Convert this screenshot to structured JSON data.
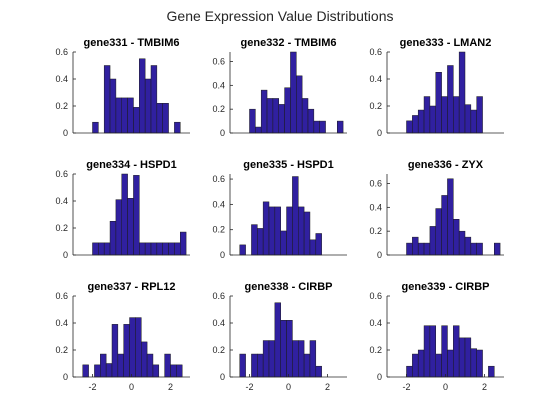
{
  "colors": {
    "bar_fill": "#3020a0",
    "bar_edge": "#1a1a1a",
    "axis": "#262626"
  },
  "chart_data": {
    "type": "bar",
    "title": "Gene Expression Value Distributions",
    "panels": [
      {
        "title": "gene331 - TMBIM6",
        "ylim": [
          0,
          0.6
        ],
        "yticks": [
          0,
          0.2,
          0.4,
          0.6
        ],
        "yticklabels": [
          "0",
          "0.2",
          "0.4",
          "0.6"
        ],
        "xlim": [
          -3,
          3
        ],
        "bin_edges": [
          -2.0,
          -1.7,
          -1.4,
          -1.1,
          -0.8,
          -0.5,
          -0.2,
          0.1,
          0.4,
          0.7,
          1.0,
          1.3,
          1.6,
          1.9,
          2.2,
          2.5
        ],
        "values": [
          0.08,
          0,
          0.5,
          0.4,
          0.26,
          0.26,
          0.26,
          0.19,
          0.55,
          0.4,
          0.5,
          0.22,
          0.22,
          0,
          0.08
        ]
      },
      {
        "title": "gene332 - TMBIM6",
        "ylim": [
          0,
          0.68
        ],
        "yticks": [
          0,
          0.2,
          0.4,
          0.6
        ],
        "yticklabels": [
          "0",
          "0.2",
          "0.4",
          "0.6"
        ],
        "xlim": [
          -3,
          3
        ],
        "bin_edges": [
          -2.0,
          -1.7,
          -1.4,
          -1.1,
          -0.8,
          -0.5,
          -0.2,
          0.1,
          0.4,
          0.7,
          1.0,
          1.3,
          1.6,
          1.9,
          2.2,
          2.5,
          2.8
        ],
        "values": [
          0.2,
          0.05,
          0.36,
          0.29,
          0.29,
          0.24,
          0.38,
          0.68,
          0.48,
          0.29,
          0.2,
          0.1,
          0.1,
          0,
          0,
          0.1
        ]
      },
      {
        "title": "gene333 - LMAN2",
        "ylim": [
          0,
          0.6
        ],
        "yticks": [
          0,
          0.2,
          0.4,
          0.6
        ],
        "yticklabels": [
          "0",
          "0.2",
          "0.4",
          "0.6"
        ],
        "xlim": [
          -3,
          3
        ],
        "bin_edges": [
          -2.0,
          -1.7,
          -1.4,
          -1.1,
          -0.8,
          -0.5,
          -0.2,
          0.1,
          0.4,
          0.7,
          1.0,
          1.3,
          1.6,
          1.9
        ],
        "values": [
          0.09,
          0.13,
          0.17,
          0.27,
          0.2,
          0.45,
          0.27,
          0.5,
          0.27,
          0.6,
          0.21,
          0.17,
          0.27
        ]
      },
      {
        "title": "gene334 - HSPD1",
        "ylim": [
          0,
          0.6
        ],
        "yticks": [
          0,
          0.2,
          0.4,
          0.6
        ],
        "yticklabels": [
          "0",
          "0.2",
          "0.4",
          "0.6"
        ],
        "xlim": [
          -3,
          3
        ],
        "bin_edges": [
          -2.0,
          -1.7,
          -1.4,
          -1.1,
          -0.8,
          -0.5,
          -0.2,
          0.1,
          0.4,
          0.7,
          1.0,
          1.3,
          1.6,
          1.9,
          2.2,
          2.5,
          2.8
        ],
        "values": [
          0.09,
          0.09,
          0.09,
          0.25,
          0.41,
          0.6,
          0.42,
          0.59,
          0.09,
          0.09,
          0.09,
          0.09,
          0.09,
          0.09,
          0.09,
          0.17
        ]
      },
      {
        "title": "gene335 - HSPD1",
        "ylim": [
          0,
          0.64
        ],
        "yticks": [
          0,
          0.2,
          0.4,
          0.6
        ],
        "yticklabels": [
          "0",
          "0.2",
          "0.4",
          "0.6"
        ],
        "xlim": [
          -3,
          3
        ],
        "bin_edges": [
          -2.5,
          -2.2,
          -1.9,
          -1.6,
          -1.3,
          -1.0,
          -0.7,
          -0.4,
          -0.1,
          0.2,
          0.5,
          0.8,
          1.1,
          1.4,
          1.7
        ],
        "values": [
          0.08,
          0,
          0.24,
          0.21,
          0.42,
          0.38,
          0.38,
          0.19,
          0.38,
          0.62,
          0.38,
          0.34,
          0.12,
          0.17
        ]
      },
      {
        "title": "gene336 - ZYX",
        "ylim": [
          0,
          0.68
        ],
        "yticks": [
          0,
          0.2,
          0.4,
          0.6
        ],
        "yticklabels": [
          "0",
          "0.2",
          "0.4",
          "0.6"
        ],
        "xlim": [
          -3,
          3
        ],
        "bin_edges": [
          -2.0,
          -1.7,
          -1.4,
          -1.1,
          -0.8,
          -0.5,
          -0.2,
          0.1,
          0.4,
          0.7,
          1.0,
          1.3,
          1.6,
          1.9,
          2.2,
          2.5,
          2.8
        ],
        "values": [
          0.1,
          0.15,
          0.1,
          0.1,
          0.24,
          0.39,
          0.5,
          0.64,
          0.3,
          0.2,
          0.15,
          0.1,
          0.1,
          0,
          0,
          0.1
        ]
      },
      {
        "title": "gene337 - RPL12",
        "ylim": [
          0,
          0.6
        ],
        "yticks": [
          0,
          0.2,
          0.4,
          0.6
        ],
        "yticklabels": [
          "0",
          "0.2",
          "0.4",
          "0.6"
        ],
        "xticks": [
          -2,
          0,
          2
        ],
        "xticklabels": [
          "-2",
          "0",
          "2"
        ],
        "xlim": [
          -3,
          3
        ],
        "bin_edges": [
          -2.5,
          -2.2,
          -1.9,
          -1.6,
          -1.3,
          -1.0,
          -0.7,
          -0.4,
          -0.1,
          0.2,
          0.5,
          0.8,
          1.1,
          1.4,
          1.7,
          2.0,
          2.3,
          2.6
        ],
        "values": [
          0.09,
          0,
          0.09,
          0.17,
          0.1,
          0.39,
          0.17,
          0.39,
          0.44,
          0.44,
          0.26,
          0.17,
          0.09,
          0,
          0.17,
          0.09,
          0.09
        ]
      },
      {
        "title": "gene338 - CIRBP",
        "ylim": [
          0,
          0.6
        ],
        "yticks": [
          0,
          0.2,
          0.4,
          0.6
        ],
        "yticklabels": [
          "0",
          "0.2",
          "0.4",
          "0.6"
        ],
        "xticks": [
          -2,
          0,
          2
        ],
        "xticklabels": [
          "-2",
          "0",
          "2"
        ],
        "xlim": [
          -3,
          3
        ],
        "bin_edges": [
          -2.5,
          -2.2,
          -1.9,
          -1.6,
          -1.3,
          -1.0,
          -0.7,
          -0.4,
          -0.1,
          0.2,
          0.5,
          0.8,
          1.1,
          1.4,
          1.7
        ],
        "values": [
          0.17,
          0,
          0.17,
          0.17,
          0.27,
          0.27,
          0.55,
          0.42,
          0.42,
          0.27,
          0.27,
          0.17,
          0.27,
          0.08
        ]
      },
      {
        "title": "gene339 - CIRBP",
        "ylim": [
          0,
          0.6
        ],
        "yticks": [
          0,
          0.2,
          0.4,
          0.6
        ],
        "yticklabels": [
          "0",
          "0.2",
          "0.4",
          "0.6"
        ],
        "xticks": [
          -2,
          0,
          2
        ],
        "xticklabels": [
          "-2",
          "0",
          "2"
        ],
        "xlim": [
          -3,
          3
        ],
        "bin_edges": [
          -2.0,
          -1.7,
          -1.4,
          -1.1,
          -0.8,
          -0.5,
          -0.2,
          0.1,
          0.4,
          0.7,
          1.0,
          1.3,
          1.6,
          1.9,
          2.2,
          2.5
        ],
        "values": [
          0.08,
          0.17,
          0.2,
          0.38,
          0.38,
          0.17,
          0.38,
          0.2,
          0.38,
          0.29,
          0.29,
          0.21,
          0.2,
          0,
          0.08
        ]
      }
    ]
  }
}
